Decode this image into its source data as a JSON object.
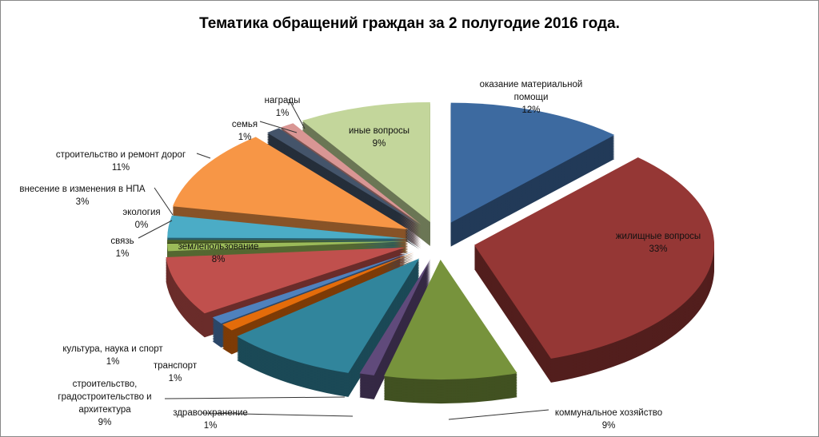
{
  "chart_data": {
    "type": "pie",
    "title": "Тематика обращений граждан за 2 полугодие 2016 года.",
    "style": "3d-exploded",
    "slices": [
      {
        "label": "оказание материальной помощи",
        "value": 12,
        "pct": "12%",
        "color": "#3d6aa0"
      },
      {
        "label": "жилищные вопросы",
        "value": 33,
        "pct": "33%",
        "color": "#953735"
      },
      {
        "label": "коммунальное хозяйство",
        "value": 9,
        "pct": "9%",
        "color": "#77933c"
      },
      {
        "label": "здравоохранение",
        "value": 1,
        "pct": "1%",
        "color": "#604a7b"
      },
      {
        "label": "строительство, градостроительство и архитектура",
        "value": 9,
        "pct": "9%",
        "color": "#31859c"
      },
      {
        "label": "транспорт",
        "value": 1,
        "pct": "1%",
        "color": "#e46c0a"
      },
      {
        "label": "культура, наука и спорт",
        "value": 1,
        "pct": "1%",
        "color": "#4f81bd"
      },
      {
        "label": "землепользование",
        "value": 8,
        "pct": "8%",
        "color": "#c0504d"
      },
      {
        "label": "связь",
        "value": 1,
        "pct": "1%",
        "color": "#9bbb59"
      },
      {
        "label": "экология",
        "value": 0.4,
        "pct": "0%",
        "color": "#4f6228"
      },
      {
        "label": "внесение в изменения в НПА",
        "value": 3,
        "pct": "3%",
        "color": "#4bacc6"
      },
      {
        "label": "строительство и ремонт дорог",
        "value": 11,
        "pct": "11%",
        "color": "#f79646"
      },
      {
        "label": "семья",
        "value": 1,
        "pct": "1%",
        "color": "#44546a"
      },
      {
        "label": "награды",
        "value": 1,
        "pct": "1%",
        "color": "#d99694"
      },
      {
        "label": "иные вопросы",
        "value": 9,
        "pct": "9%",
        "color": "#c3d69b"
      }
    ]
  }
}
